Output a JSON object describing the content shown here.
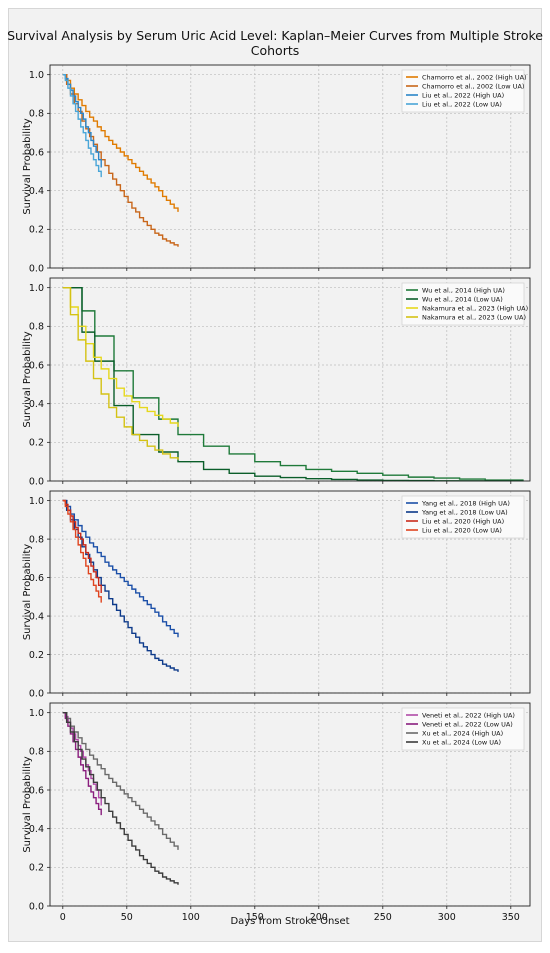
{
  "title": "Survival Analysis by Serum Uric Acid Level: Kaplan–Meier Curves from Multiple Stroke Cohorts",
  "chart_data": [
    {
      "type": "line",
      "step": true,
      "ylabel": "Survival Probability",
      "xlabel": "",
      "xlim": [
        -10,
        365
      ],
      "ylim": [
        0,
        1.05
      ],
      "y_ticks": [
        "0.0",
        "0.2",
        "0.4",
        "0.6",
        "0.8",
        "1.0"
      ],
      "x_ticks": [],
      "grid": true,
      "legend": "top-right",
      "series": [
        {
          "name": "Chamorro et al., 2002 (High UA)",
          "color": "#e07b00",
          "x": [
            0,
            3,
            6,
            9,
            12,
            15,
            18,
            21,
            24,
            27,
            30,
            33,
            36,
            39,
            42,
            45,
            48,
            51,
            54,
            57,
            60,
            63,
            66,
            69,
            72,
            75,
            78,
            81,
            84,
            87,
            90
          ],
          "y": [
            1.0,
            0.97,
            0.93,
            0.9,
            0.87,
            0.84,
            0.81,
            0.78,
            0.76,
            0.73,
            0.71,
            0.68,
            0.66,
            0.64,
            0.62,
            0.6,
            0.58,
            0.56,
            0.54,
            0.52,
            0.5,
            0.48,
            0.46,
            0.44,
            0.42,
            0.4,
            0.37,
            0.35,
            0.33,
            0.31,
            0.29
          ]
        },
        {
          "name": "Chamorro et al., 2002 (Low UA)",
          "color": "#c8661a",
          "x": [
            0,
            3,
            6,
            9,
            12,
            15,
            18,
            21,
            24,
            27,
            30,
            33,
            36,
            39,
            42,
            45,
            48,
            51,
            54,
            57,
            60,
            63,
            66,
            69,
            72,
            75,
            78,
            81,
            84,
            87,
            90
          ],
          "y": [
            1.0,
            0.95,
            0.9,
            0.85,
            0.81,
            0.76,
            0.72,
            0.68,
            0.64,
            0.6,
            0.56,
            0.53,
            0.49,
            0.46,
            0.43,
            0.4,
            0.37,
            0.34,
            0.31,
            0.29,
            0.26,
            0.24,
            0.22,
            0.2,
            0.18,
            0.17,
            0.15,
            0.14,
            0.13,
            0.12,
            0.11
          ]
        },
        {
          "name": "Liu et al., 2022 (High UA)",
          "color": "#2a86c9",
          "x": [
            0,
            2,
            4,
            6,
            8,
            10,
            12,
            14,
            16,
            18,
            20,
            22,
            24,
            26,
            28,
            30
          ],
          "y": [
            1.0,
            0.98,
            0.95,
            0.92,
            0.89,
            0.86,
            0.83,
            0.8,
            0.77,
            0.73,
            0.7,
            0.66,
            0.63,
            0.6,
            0.56,
            0.52
          ]
        },
        {
          "name": "Liu et al., 2022 (Low UA)",
          "color": "#4aa6d8",
          "x": [
            0,
            2,
            4,
            6,
            8,
            10,
            12,
            14,
            16,
            18,
            20,
            22,
            24,
            26,
            28,
            30
          ],
          "y": [
            1.0,
            0.97,
            0.93,
            0.89,
            0.85,
            0.81,
            0.77,
            0.73,
            0.7,
            0.66,
            0.62,
            0.59,
            0.56,
            0.53,
            0.5,
            0.47
          ]
        }
      ]
    },
    {
      "type": "line",
      "step": true,
      "ylabel": "Survival Probability",
      "xlabel": "",
      "xlim": [
        -10,
        365
      ],
      "ylim": [
        0,
        1.05
      ],
      "y_ticks": [
        "0.0",
        "0.2",
        "0.4",
        "0.6",
        "0.8",
        "1.0"
      ],
      "x_ticks": [],
      "grid": true,
      "legend": "top-right",
      "series": [
        {
          "name": "Wu et al., 2014 (High UA)",
          "color": "#1f7a3a",
          "x": [
            0,
            15,
            25,
            40,
            55,
            75,
            90,
            110,
            130,
            150,
            170,
            190,
            210,
            230,
            250,
            270,
            290,
            310,
            330,
            360
          ],
          "y": [
            1.0,
            0.88,
            0.75,
            0.57,
            0.43,
            0.32,
            0.24,
            0.18,
            0.14,
            0.1,
            0.08,
            0.06,
            0.05,
            0.04,
            0.03,
            0.02,
            0.015,
            0.01,
            0.005,
            0.005
          ]
        },
        {
          "name": "Wu et al., 2014 (Low UA)",
          "color": "#0b5e2a",
          "x": [
            0,
            15,
            25,
            40,
            55,
            75,
            90,
            110,
            130,
            150,
            170,
            190,
            210,
            230,
            250,
            270,
            290,
            310,
            330,
            360
          ],
          "y": [
            1.0,
            0.77,
            0.62,
            0.39,
            0.24,
            0.15,
            0.1,
            0.06,
            0.04,
            0.025,
            0.018,
            0.012,
            0.008,
            0.005,
            0.003,
            0.002,
            0.001,
            0.001,
            0.001,
            0.001
          ]
        },
        {
          "name": "Nakamura et al., 2023 (High UA)",
          "color": "#e6d81c",
          "x": [
            0,
            6,
            12,
            18,
            24,
            30,
            36,
            42,
            48,
            54,
            60,
            66,
            72,
            78,
            84,
            90
          ],
          "y": [
            1.0,
            0.9,
            0.8,
            0.71,
            0.64,
            0.58,
            0.53,
            0.48,
            0.44,
            0.41,
            0.38,
            0.36,
            0.34,
            0.32,
            0.3,
            0.28
          ]
        },
        {
          "name": "Nakamura et al., 2023 (Low UA)",
          "color": "#d4c214",
          "x": [
            0,
            6,
            12,
            18,
            24,
            30,
            36,
            42,
            48,
            54,
            60,
            66,
            72,
            78,
            84,
            90
          ],
          "y": [
            1.0,
            0.86,
            0.73,
            0.62,
            0.53,
            0.45,
            0.38,
            0.33,
            0.28,
            0.24,
            0.21,
            0.18,
            0.16,
            0.14,
            0.12,
            0.11
          ]
        }
      ]
    },
    {
      "type": "line",
      "step": true,
      "ylabel": "Survival Probability",
      "xlabel": "",
      "xlim": [
        -10,
        365
      ],
      "ylim": [
        0,
        1.05
      ],
      "y_ticks": [
        "0.0",
        "0.2",
        "0.4",
        "0.6",
        "0.8",
        "1.0"
      ],
      "x_ticks": [],
      "grid": true,
      "legend": "top-right",
      "series": [
        {
          "name": "Yang et al., 2018 (High UA)",
          "color": "#1b4fa8",
          "x": [
            0,
            3,
            6,
            9,
            12,
            15,
            18,
            21,
            24,
            27,
            30,
            33,
            36,
            39,
            42,
            45,
            48,
            51,
            54,
            57,
            60,
            63,
            66,
            69,
            72,
            75,
            78,
            81,
            84,
            87,
            90
          ],
          "y": [
            1.0,
            0.97,
            0.93,
            0.9,
            0.87,
            0.84,
            0.81,
            0.78,
            0.76,
            0.73,
            0.71,
            0.68,
            0.66,
            0.64,
            0.62,
            0.6,
            0.58,
            0.56,
            0.54,
            0.52,
            0.5,
            0.48,
            0.46,
            0.44,
            0.42,
            0.4,
            0.37,
            0.35,
            0.33,
            0.31,
            0.29
          ]
        },
        {
          "name": "Yang et al., 2018 (Low UA)",
          "color": "#0d3a8a",
          "x": [
            0,
            3,
            6,
            9,
            12,
            15,
            18,
            21,
            24,
            27,
            30,
            33,
            36,
            39,
            42,
            45,
            48,
            51,
            54,
            57,
            60,
            63,
            66,
            69,
            72,
            75,
            78,
            81,
            84,
            87,
            90
          ],
          "y": [
            1.0,
            0.95,
            0.9,
            0.85,
            0.81,
            0.76,
            0.72,
            0.68,
            0.64,
            0.6,
            0.56,
            0.53,
            0.49,
            0.46,
            0.43,
            0.4,
            0.37,
            0.34,
            0.31,
            0.29,
            0.26,
            0.24,
            0.22,
            0.2,
            0.18,
            0.17,
            0.15,
            0.14,
            0.13,
            0.12,
            0.11
          ]
        },
        {
          "name": "Liu et al., 2020 (High UA)",
          "color": "#c92a1a",
          "x": [
            0,
            2,
            4,
            6,
            8,
            10,
            12,
            14,
            16,
            18,
            20,
            22,
            24,
            26,
            28,
            30
          ],
          "y": [
            1.0,
            0.98,
            0.95,
            0.92,
            0.89,
            0.86,
            0.83,
            0.8,
            0.77,
            0.73,
            0.7,
            0.66,
            0.63,
            0.6,
            0.56,
            0.52
          ]
        },
        {
          "name": "Liu et al., 2020 (Low UA)",
          "color": "#e0441f",
          "x": [
            0,
            2,
            4,
            6,
            8,
            10,
            12,
            14,
            16,
            18,
            20,
            22,
            24,
            26,
            28,
            30
          ],
          "y": [
            1.0,
            0.97,
            0.93,
            0.89,
            0.85,
            0.81,
            0.77,
            0.73,
            0.7,
            0.66,
            0.62,
            0.59,
            0.56,
            0.53,
            0.5,
            0.47
          ]
        }
      ]
    },
    {
      "type": "line",
      "step": true,
      "ylabel": "Survival Probability",
      "xlabel": "Days from Stroke Onset",
      "xlim": [
        -10,
        365
      ],
      "ylim": [
        0,
        1.05
      ],
      "y_ticks": [
        "0.0",
        "0.2",
        "0.4",
        "0.6",
        "0.8",
        "1.0"
      ],
      "x_ticks": [
        "0",
        "50",
        "100",
        "150",
        "200",
        "250",
        "300",
        "350"
      ],
      "grid": true,
      "legend": "top-right",
      "series": [
        {
          "name": "Veneti et al., 2022 (High UA)",
          "color": "#b04aa8",
          "x": [
            0,
            2,
            4,
            6,
            8,
            10,
            12,
            14,
            16,
            18,
            20,
            22,
            24,
            26,
            28,
            30
          ],
          "y": [
            1.0,
            0.98,
            0.95,
            0.92,
            0.89,
            0.86,
            0.83,
            0.8,
            0.77,
            0.73,
            0.7,
            0.66,
            0.63,
            0.6,
            0.56,
            0.52
          ]
        },
        {
          "name": "Veneti et al., 2022 (Low UA)",
          "color": "#8a1e7e",
          "x": [
            0,
            2,
            4,
            6,
            8,
            10,
            12,
            14,
            16,
            18,
            20,
            22,
            24,
            26,
            28,
            30
          ],
          "y": [
            1.0,
            0.97,
            0.93,
            0.89,
            0.85,
            0.81,
            0.77,
            0.73,
            0.7,
            0.66,
            0.62,
            0.59,
            0.56,
            0.53,
            0.5,
            0.47
          ]
        },
        {
          "name": "Xu et al., 2024 (High UA)",
          "color": "#6a6a6a",
          "x": [
            0,
            3,
            6,
            9,
            12,
            15,
            18,
            21,
            24,
            27,
            30,
            33,
            36,
            39,
            42,
            45,
            48,
            51,
            54,
            57,
            60,
            63,
            66,
            69,
            72,
            75,
            78,
            81,
            84,
            87,
            90
          ],
          "y": [
            1.0,
            0.97,
            0.93,
            0.9,
            0.87,
            0.84,
            0.81,
            0.78,
            0.76,
            0.73,
            0.71,
            0.68,
            0.66,
            0.64,
            0.62,
            0.6,
            0.58,
            0.56,
            0.54,
            0.52,
            0.5,
            0.48,
            0.46,
            0.44,
            0.42,
            0.4,
            0.37,
            0.35,
            0.33,
            0.31,
            0.29
          ]
        },
        {
          "name": "Xu et al., 2024 (Low UA)",
          "color": "#3c3c3c",
          "x": [
            0,
            3,
            6,
            9,
            12,
            15,
            18,
            21,
            24,
            27,
            30,
            33,
            36,
            39,
            42,
            45,
            48,
            51,
            54,
            57,
            60,
            63,
            66,
            69,
            72,
            75,
            78,
            81,
            84,
            87,
            90
          ],
          "y": [
            1.0,
            0.95,
            0.9,
            0.85,
            0.81,
            0.76,
            0.72,
            0.68,
            0.64,
            0.6,
            0.56,
            0.53,
            0.49,
            0.46,
            0.43,
            0.4,
            0.37,
            0.34,
            0.31,
            0.29,
            0.26,
            0.24,
            0.22,
            0.2,
            0.18,
            0.17,
            0.15,
            0.14,
            0.13,
            0.12,
            0.11
          ]
        }
      ]
    }
  ]
}
